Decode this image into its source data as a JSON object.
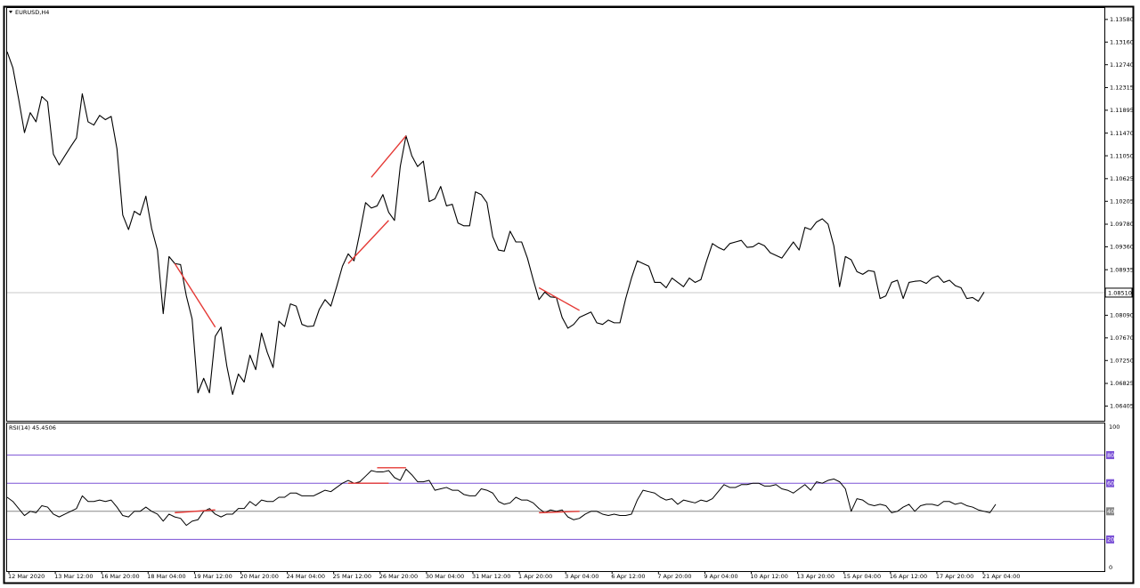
{
  "chart_data": [
    {
      "type": "line",
      "title": "EURUSD,H4",
      "y_ticks": [
        "1.13580",
        "1.13160",
        "1.12740",
        "1.12315",
        "1.11895",
        "1.11470",
        "1.11050",
        "1.10625",
        "1.10205",
        "1.09780",
        "1.09360",
        "1.08935",
        "1.08515",
        "1.08090",
        "1.07670",
        "1.07250",
        "1.06825",
        "1.06405"
      ],
      "ylim": [
        1.0633,
        1.1366
      ],
      "x_ticks": [
        "12 Mar 2020",
        "13 Mar 12:00",
        "16 Mar 20:00",
        "18 Mar 04:00",
        "19 Mar 12:00",
        "20 Mar 20:00",
        "24 Mar 04:00",
        "25 Mar 12:00",
        "26 Mar 20:00",
        "30 Mar 04:00",
        "31 Mar 12:00",
        "1 Apr 20:00",
        "3 Apr 04:00",
        "6 Apr 12:00",
        "7 Apr 20:00",
        "9 Apr 04:00",
        "10 Apr 12:00",
        "13 Apr 20:00",
        "15 Apr 04:00",
        "16 Apr 12:00",
        "17 Apr 20:00",
        "21 Apr 04:00"
      ],
      "current_price": "1.08510",
      "current_price_value": 1.0851,
      "series": [
        {
          "values": [
            1.1298,
            1.1268,
            1.121,
            1.1148,
            1.1185,
            1.1168,
            1.1215,
            1.1205,
            1.1108,
            1.1088,
            1.1105,
            1.1122,
            1.1138,
            1.122,
            1.1168,
            1.1162,
            1.118,
            1.1172,
            1.1178,
            1.1118,
            1.0995,
            1.0968,
            1.1002,
            1.0995,
            1.103,
            1.097,
            1.093,
            1.0812,
            1.0918,
            1.0905,
            1.0903,
            1.0845,
            1.0802,
            1.0665,
            1.0692,
            1.0665,
            1.077,
            1.0787,
            1.0715,
            1.0662,
            1.07,
            1.0685,
            1.0735,
            1.0708,
            1.0776,
            1.074,
            1.0712,
            1.0798,
            1.0788,
            1.083,
            1.0826,
            1.0792,
            1.0788,
            1.0789,
            1.082,
            1.0838,
            1.0826,
            1.0862,
            1.09,
            1.0923,
            1.091,
            1.0962,
            1.1018,
            1.1008,
            1.1012,
            1.1033,
            1.1,
            1.0985,
            1.1085,
            1.1142,
            1.1105,
            1.1085,
            1.1095,
            1.102,
            1.1025,
            1.1048,
            1.1012,
            1.1015,
            1.098,
            1.0975,
            1.0975,
            1.1038,
            1.1033,
            1.1018,
            1.0955,
            1.093,
            1.0928,
            1.0965,
            1.0945,
            1.0945,
            1.0915,
            1.0875,
            1.0838,
            1.0852,
            1.0843,
            1.0842,
            1.0805,
            1.0785,
            1.0792,
            1.0805,
            1.081,
            1.0815,
            1.0795,
            1.0792,
            1.08,
            1.0795,
            1.0795,
            1.084,
            1.0878,
            1.091,
            1.0905,
            1.09,
            1.087,
            1.087,
            1.086,
            1.0878,
            1.087,
            1.0862,
            1.0878,
            1.087,
            1.0875,
            1.091,
            1.0942,
            1.0935,
            1.093,
            1.0942,
            1.0945,
            1.0948,
            1.0935,
            1.0936,
            1.0943,
            1.0938,
            1.0925,
            1.092,
            1.0915,
            1.093,
            1.0945,
            1.093,
            1.0972,
            1.0968,
            1.0982,
            1.0988,
            1.0978,
            1.0938,
            1.0862,
            1.0918,
            1.0912,
            1.089,
            1.0885,
            1.0892,
            1.089,
            1.084,
            1.0845,
            1.087,
            1.0874,
            1.084,
            1.087,
            1.0872,
            1.0873,
            1.0868,
            1.0878,
            1.0882,
            1.087,
            1.0874,
            1.0864,
            1.086,
            1.084,
            1.0842,
            1.0835,
            1.0852
          ]
        }
      ],
      "annotations": [
        {
          "type": "trendline",
          "color": "#e53935",
          "from": {
            "index": 29,
            "value": 1.0905
          },
          "to": {
            "index": 36,
            "value": 1.0787
          }
        },
        {
          "type": "trendline",
          "color": "#e53935",
          "from": {
            "index": 59,
            "value": 1.0905
          },
          "to": {
            "index": 66,
            "value": 1.0985
          }
        },
        {
          "type": "trendline",
          "color": "#e53935",
          "from": {
            "index": 63,
            "value": 1.1065
          },
          "to": {
            "index": 69,
            "value": 1.1142
          }
        },
        {
          "type": "trendline",
          "color": "#e53935",
          "from": {
            "index": 92,
            "value": 1.086
          },
          "to": {
            "index": 99,
            "value": 1.0818
          }
        }
      ]
    },
    {
      "type": "line",
      "title": "RSI(14) 45.4506",
      "ylim": [
        0,
        100
      ],
      "y_ticks": [
        {
          "label": "100",
          "value": 100
        },
        {
          "label": "0",
          "value": 0
        }
      ],
      "level_badges": [
        {
          "label": "80",
          "value": 80
        },
        {
          "label": "60",
          "value": 60
        },
        {
          "label": "40",
          "value": 40
        },
        {
          "label": "20",
          "value": 20
        }
      ],
      "level_colors": {
        "80": "#7b52d6",
        "60": "#7b52d6",
        "40": "#888888",
        "20": "#7b52d6"
      },
      "series": [
        {
          "values": [
            50,
            47,
            42,
            37,
            40,
            39,
            44,
            43,
            38,
            36,
            38,
            40,
            42,
            51,
            47,
            47,
            48,
            47,
            48,
            43,
            37,
            36,
            40,
            40,
            43,
            40,
            38,
            33,
            38,
            36,
            35,
            30,
            33,
            34,
            40,
            42,
            38,
            36,
            38,
            38,
            42,
            42,
            47,
            44,
            48,
            47,
            47,
            50,
            50,
            53,
            53,
            51,
            51,
            51,
            53,
            55,
            54,
            57,
            60,
            62,
            60,
            61,
            65,
            69,
            68,
            68,
            69,
            64,
            62,
            70,
            66,
            61,
            61,
            62,
            55,
            56,
            57,
            55,
            55,
            52,
            51,
            51,
            56,
            55,
            53,
            47,
            45,
            46,
            50,
            48,
            48,
            46,
            42,
            39,
            41,
            40,
            41,
            36,
            34,
            35,
            38,
            40,
            40,
            38,
            37,
            38,
            37,
            37,
            38,
            48,
            55,
            54,
            53,
            50,
            48,
            49,
            45,
            48,
            47,
            46,
            48,
            47,
            49,
            54,
            59,
            57,
            57,
            59,
            59,
            60,
            60,
            58,
            58,
            59,
            56,
            55,
            53,
            56,
            59,
            55,
            61,
            60,
            62,
            63,
            61,
            56,
            40,
            49,
            48,
            45,
            44,
            45,
            44,
            39,
            40,
            43,
            45,
            40,
            44,
            45,
            45,
            44,
            47,
            47,
            45,
            46,
            44,
            43,
            41,
            40,
            39,
            45
          ]
        }
      ],
      "annotations": [
        {
          "type": "trendline",
          "color": "#e53935",
          "from": {
            "index": 29,
            "value": 39
          },
          "to": {
            "index": 36,
            "value": 41
          }
        },
        {
          "type": "trendline",
          "color": "#e53935",
          "from": {
            "index": 59,
            "value": 60
          },
          "to": {
            "index": 66,
            "value": 60
          }
        },
        {
          "type": "trendline",
          "color": "#e53935",
          "from": {
            "index": 64,
            "value": 71
          },
          "to": {
            "index": 69,
            "value": 71
          }
        },
        {
          "type": "trendline",
          "color": "#e53935",
          "from": {
            "index": 92,
            "value": 39
          },
          "to": {
            "index": 99,
            "value": 40
          }
        }
      ]
    }
  ]
}
